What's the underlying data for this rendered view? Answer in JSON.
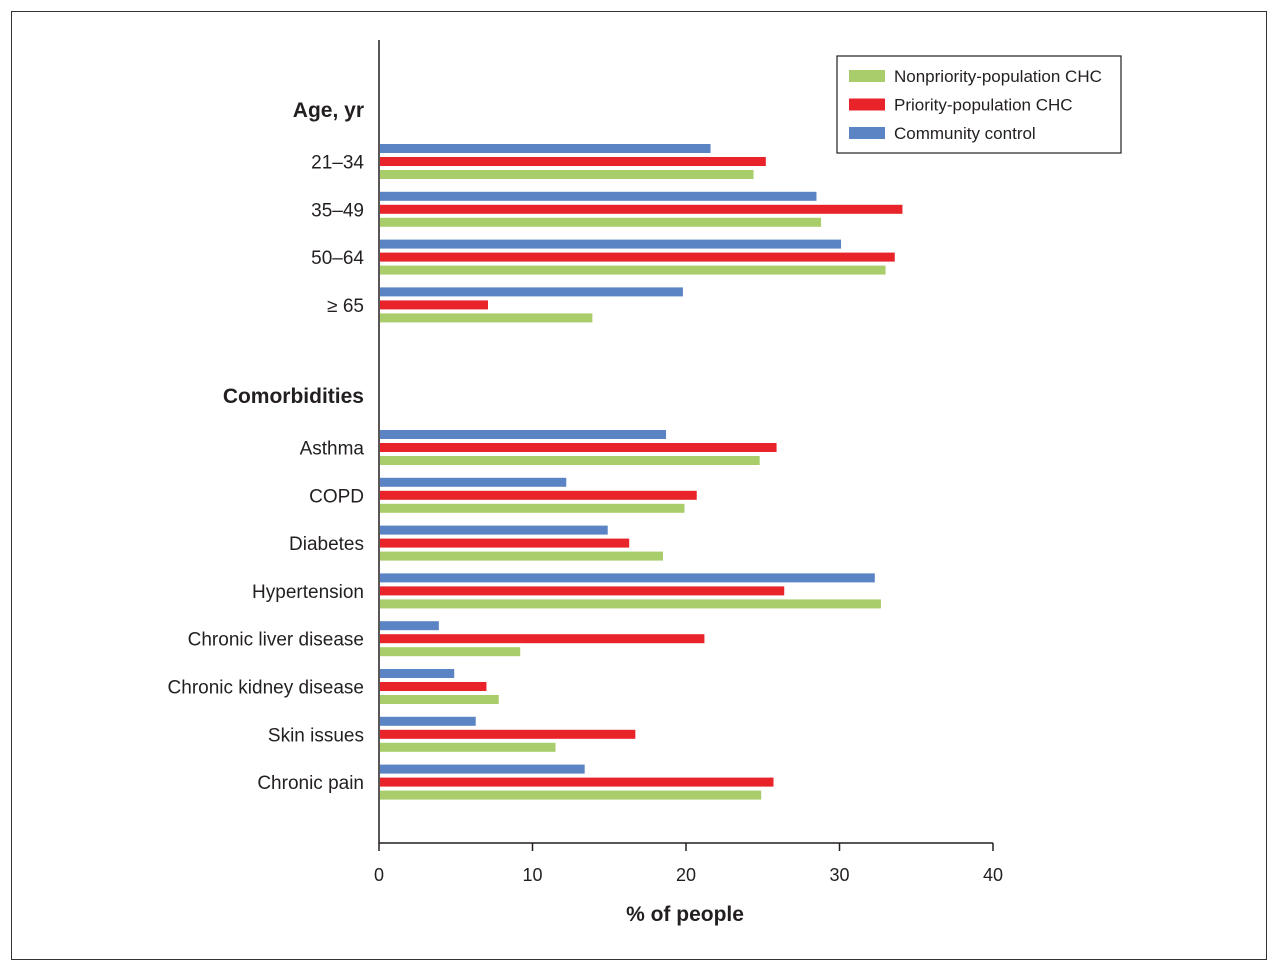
{
  "chart_data": {
    "type": "bar",
    "orientation": "horizontal",
    "xlabel": "% of people",
    "xlim": [
      0,
      40
    ],
    "xticks": [
      0,
      10,
      20,
      30,
      40
    ],
    "grid": false,
    "legend_position": "top-right",
    "groups": [
      {
        "label": "Age, yr",
        "categories": [
          "21–34",
          "35–49",
          "50–64",
          "≥ 65"
        ]
      },
      {
        "label": "Comorbidities",
        "categories": [
          "Asthma",
          "COPD",
          "Diabetes",
          "Hypertension",
          "Chronic liver disease",
          "Chronic kidney disease",
          "Skin issues",
          "Chronic pain"
        ]
      }
    ],
    "categories": [
      "21–34",
      "35–49",
      "50–64",
      "≥ 65",
      "Asthma",
      "COPD",
      "Diabetes",
      "Hypertension",
      "Chronic liver disease",
      "Chronic kidney disease",
      "Skin issues",
      "Chronic pain"
    ],
    "series": [
      {
        "name": "Community control",
        "color": "#5b84c4",
        "values": [
          21.6,
          28.5,
          30.1,
          19.8,
          18.7,
          12.2,
          14.9,
          32.3,
          3.9,
          4.9,
          6.3,
          13.4
        ]
      },
      {
        "name": "Priority-population CHC",
        "color": "#e8232a",
        "values": [
          25.2,
          34.1,
          33.6,
          7.1,
          25.9,
          20.7,
          16.3,
          26.4,
          21.2,
          7.0,
          16.7,
          25.7
        ]
      },
      {
        "name": "Nonpriority-population CHC",
        "color": "#a9cd6b",
        "values": [
          24.4,
          28.8,
          33.0,
          13.9,
          24.8,
          19.9,
          18.5,
          32.7,
          9.2,
          7.8,
          11.5,
          24.9
        ]
      }
    ],
    "legend": [
      "Nonpriority-population CHC",
      "Priority-population CHC",
      "Community control"
    ]
  }
}
